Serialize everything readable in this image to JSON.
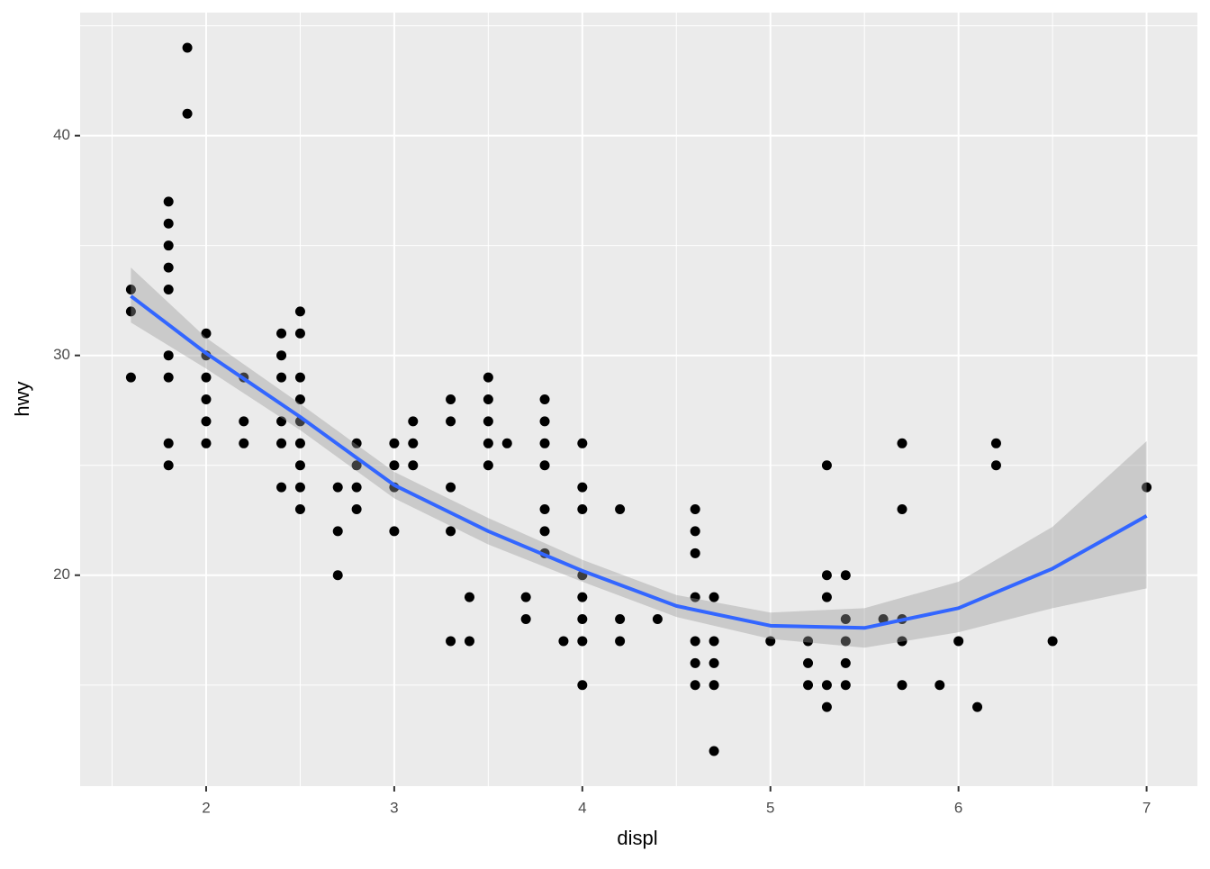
{
  "chart_data": {
    "type": "scatter",
    "x_label": "displ",
    "y_label": "hwy",
    "x": [
      1.6,
      1.6,
      1.6,
      1.8,
      1.8,
      1.8,
      1.8,
      1.8,
      1.8,
      1.8,
      1.8,
      1.8,
      1.9,
      1.9,
      2,
      2,
      2,
      2,
      2,
      2,
      2.2,
      2.2,
      2.2,
      2.4,
      2.4,
      2.4,
      2.4,
      2.4,
      2.4,
      2.5,
      2.5,
      2.5,
      2.5,
      2.5,
      2.5,
      2.5,
      2.5,
      2.5,
      2.7,
      2.7,
      2.7,
      2.8,
      2.8,
      2.8,
      2.8,
      3,
      3,
      3,
      3,
      3.1,
      3.1,
      3.1,
      3.3,
      3.3,
      3.3,
      3.3,
      3.3,
      3.4,
      3.4,
      3.5,
      3.5,
      3.5,
      3.5,
      3.5,
      3.6,
      3.7,
      3.7,
      3.8,
      3.8,
      3.8,
      3.8,
      3.8,
      3.8,
      3.8,
      3.9,
      4,
      4,
      4,
      4,
      4,
      4,
      4,
      4,
      4.2,
      4.2,
      4.2,
      4.4,
      4.6,
      4.6,
      4.6,
      4.6,
      4.6,
      4.6,
      4.6,
      4.7,
      4.7,
      4.7,
      4.7,
      4.7,
      5,
      5.2,
      5.2,
      5.2,
      5.3,
      5.3,
      5.3,
      5.3,
      5.3,
      5.4,
      5.4,
      5.4,
      5.4,
      5.4,
      5.6,
      5.7,
      5.7,
      5.7,
      5.7,
      5.7,
      5.9,
      6,
      6.1,
      6.2,
      6.2,
      6.5,
      7
    ],
    "values": [
      33,
      32,
      29,
      37,
      36,
      35,
      34,
      33,
      30,
      29,
      26,
      25,
      44,
      41,
      31,
      30,
      29,
      28,
      27,
      26,
      29,
      27,
      26,
      31,
      30,
      29,
      27,
      26,
      24,
      32,
      31,
      29,
      28,
      27,
      26,
      25,
      24,
      23,
      24,
      22,
      20,
      26,
      25,
      24,
      23,
      26,
      25,
      24,
      22,
      27,
      26,
      25,
      28,
      27,
      24,
      22,
      17,
      19,
      17,
      29,
      28,
      27,
      26,
      25,
      26,
      19,
      18,
      28,
      27,
      26,
      25,
      23,
      22,
      21,
      17,
      26,
      24,
      23,
      20,
      19,
      18,
      17,
      15,
      23,
      18,
      17,
      18,
      23,
      22,
      21,
      19,
      17,
      16,
      15,
      19,
      17,
      16,
      15,
      12,
      17,
      17,
      16,
      15,
      25,
      20,
      19,
      15,
      14,
      20,
      18,
      17,
      16,
      15,
      18,
      26,
      23,
      18,
      17,
      15,
      15,
      17,
      14,
      26,
      25,
      17,
      24
    ],
    "color": "#000000",
    "smooth": {
      "x": [
        1.6,
        2,
        2.5,
        3,
        3.5,
        4,
        4.5,
        5,
        5.5,
        6,
        6.5,
        7
      ],
      "values": [
        32.7,
        30.1,
        27.2,
        24.1,
        22.0,
        20.2,
        18.6,
        17.7,
        17.6,
        18.5,
        20.3,
        22.7
      ],
      "lower": [
        31.5,
        29.4,
        26.6,
        23.5,
        21.4,
        19.7,
        18.1,
        17.1,
        16.7,
        17.4,
        18.5,
        19.4
      ],
      "upper": [
        34.0,
        30.8,
        27.8,
        24.7,
        22.6,
        20.7,
        19.1,
        18.3,
        18.5,
        19.7,
        22.2,
        26.1
      ],
      "color": "#3366ff",
      "band_color": "#999999"
    },
    "xlim": [
      1.33,
      7.27
    ],
    "ylim": [
      10.4,
      45.6
    ],
    "xticks": [
      2,
      3,
      4,
      5,
      6,
      7
    ],
    "yticks": [
      20,
      30,
      40
    ],
    "x_minor_grid": [
      1.5,
      2.5,
      3.5,
      4.5,
      5.5,
      6.5
    ],
    "y_minor_grid": [
      15,
      25,
      35,
      45
    ],
    "grid": true
  }
}
